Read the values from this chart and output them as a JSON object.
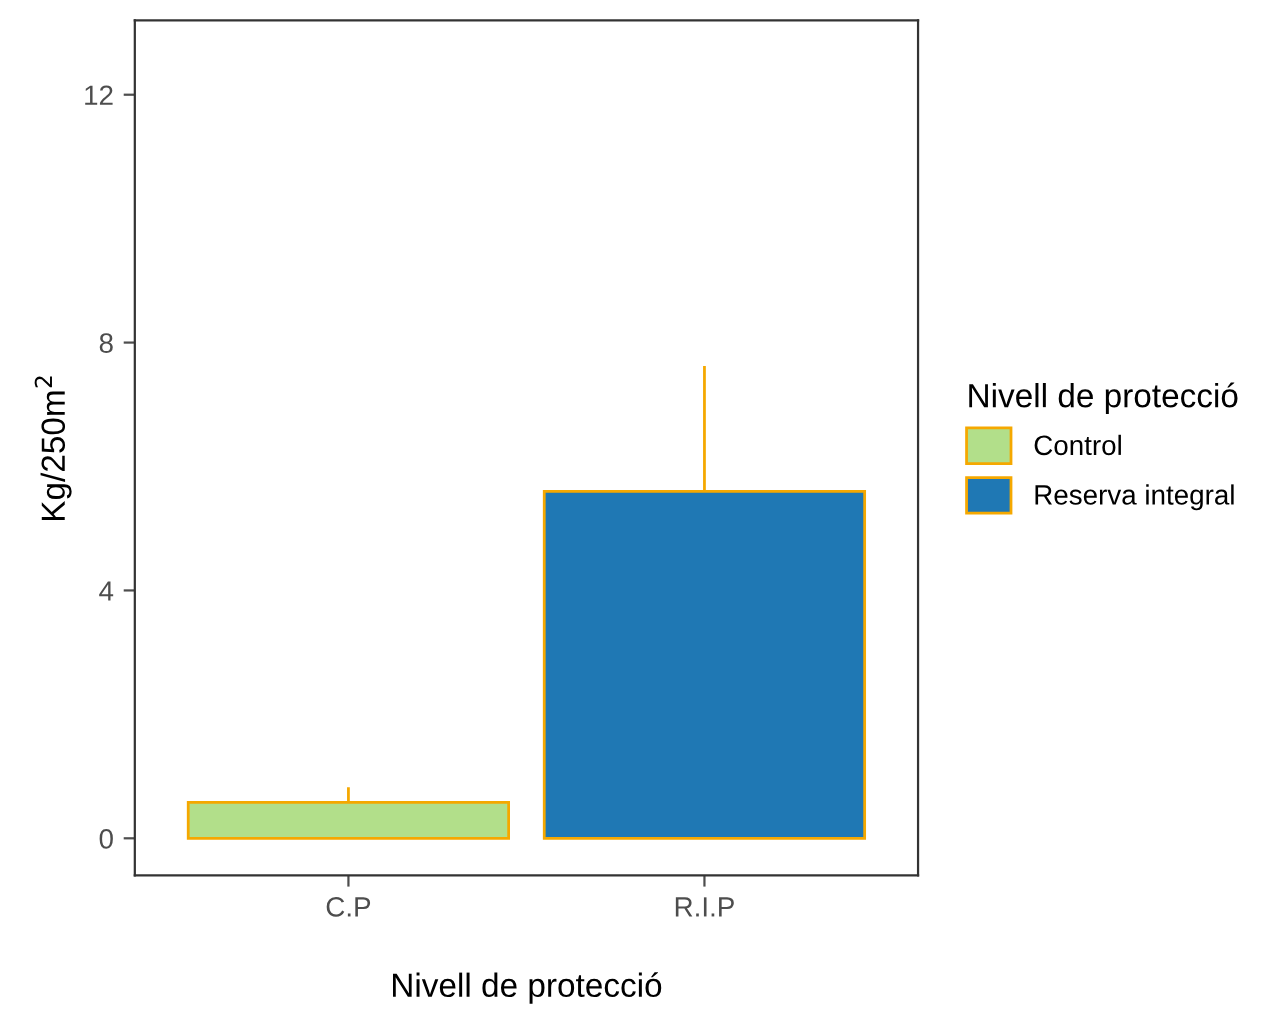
{
  "chart_data": {
    "type": "bar",
    "xlabel": "Nivell de protecció",
    "ylabel": "Kg/250m$^{2}$",
    "legend_title": "Nivell de protecció",
    "categories": [
      "C.P",
      "R.I.P"
    ],
    "series": [
      {
        "name": "Control",
        "color": "#b2df8a",
        "values": [
          0.58,
          null
        ],
        "errors": [
          [
            0.58,
            0.8
          ],
          null
        ]
      },
      {
        "name": "Reserva integral",
        "color": "#1f78b4",
        "values": [
          null,
          5.6
        ],
        "errors": [
          null,
          [
            5.6,
            7.6
          ]
        ]
      }
    ],
    "ylim": [
      -0.6,
      13.2
    ],
    "yticks": [
      0,
      4,
      8,
      12
    ],
    "grid": false,
    "legend": "right"
  }
}
